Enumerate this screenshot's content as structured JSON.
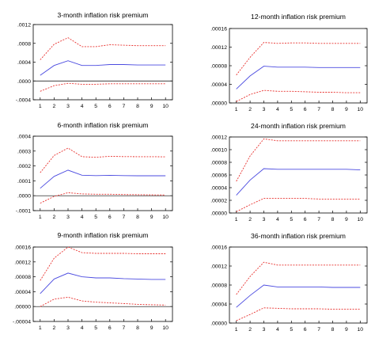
{
  "chart_data": [
    {
      "type": "line",
      "title": "3-month inflation risk premium",
      "x": [
        1,
        2,
        3,
        4,
        5,
        6,
        7,
        8,
        9,
        10
      ],
      "xticks": [
        "1",
        "2",
        "3",
        "4",
        "5",
        "6",
        "7",
        "8",
        "9",
        "10"
      ],
      "ylim": [
        -0.0004,
        0.0012
      ],
      "yticks": [
        -0.0004,
        0.0,
        0.0004,
        0.0008,
        0.0012
      ],
      "ytick_labels": [
        "-.0004",
        ".0000",
        ".0004",
        ".0008",
        ".0012"
      ],
      "zero_line": true,
      "series": [
        {
          "style": "dashed",
          "color": "#e8322f",
          "values": [
            0.00045,
            0.00078,
            0.00092,
            0.00073,
            0.00073,
            0.00077,
            0.00076,
            0.00075,
            0.00075,
            0.00075
          ]
        },
        {
          "style": "solid",
          "color": "#4b4be0",
          "values": [
            0.00012,
            0.00033,
            0.00043,
            0.00033,
            0.00033,
            0.00035,
            0.00035,
            0.00034,
            0.00034,
            0.00034
          ]
        },
        {
          "style": "dashed",
          "color": "#e8322f",
          "values": [
            -0.00022,
            -0.0001,
            -5e-05,
            -7e-05,
            -7e-05,
            -6e-05,
            -6e-05,
            -6e-05,
            -6e-05,
            -6e-05
          ]
        }
      ]
    },
    {
      "type": "line",
      "title": "12-month inflation risk premium",
      "x": [
        1,
        2,
        3,
        4,
        5,
        6,
        7,
        8,
        9,
        10
      ],
      "xticks": [
        "1",
        "2",
        "3",
        "4",
        "5",
        "6",
        "7",
        "8",
        "9",
        "10"
      ],
      "ylim": [
        0.0,
        0.00016
      ],
      "yticks": [
        0.0,
        4e-05,
        8e-05,
        0.00012,
        0.00016
      ],
      "ytick_labels": [
        ".00000",
        ".00004",
        ".00008",
        ".00012",
        ".00016"
      ],
      "zero_line": false,
      "series": [
        {
          "style": "dashed",
          "color": "#e8322f",
          "values": [
            6e-05,
            9.8e-05,
            0.00013,
            0.000128,
            0.000129,
            0.000129,
            0.000128,
            0.000128,
            0.000128,
            0.000128
          ]
        },
        {
          "style": "solid",
          "color": "#4b4be0",
          "values": [
            3e-05,
            5.8e-05,
            7.9e-05,
            7.7e-05,
            7.7e-05,
            7.7e-05,
            7.6e-05,
            7.6e-05,
            7.6e-05,
            7.6e-05
          ]
        },
        {
          "style": "dashed",
          "color": "#e8322f",
          "values": [
            3e-06,
            1.8e-05,
            2.7e-05,
            2.5e-05,
            2.5e-05,
            2.4e-05,
            2.3e-05,
            2.3e-05,
            2.2e-05,
            2.2e-05
          ]
        }
      ]
    },
    {
      "type": "line",
      "title": "6-month inflation risk premium",
      "x": [
        1,
        2,
        3,
        4,
        5,
        6,
        7,
        8,
        9,
        10
      ],
      "xticks": [
        "1",
        "2",
        "3",
        "4",
        "5",
        "6",
        "7",
        "8",
        "9",
        "10"
      ],
      "ylim": [
        -0.0001,
        0.0004
      ],
      "yticks": [
        -0.0001,
        0.0,
        0.0001,
        0.0002,
        0.0003,
        0.0004
      ],
      "ytick_labels": [
        "-.0001",
        ".0000",
        ".0001",
        ".0002",
        ".0003",
        ".0004"
      ],
      "zero_line": true,
      "series": [
        {
          "style": "dashed",
          "color": "#e8322f",
          "values": [
            0.000155,
            0.00027,
            0.00032,
            0.000262,
            0.000258,
            0.000265,
            0.000263,
            0.000262,
            0.000262,
            0.000261
          ]
        },
        {
          "style": "solid",
          "color": "#4b4be0",
          "values": [
            5e-05,
            0.00013,
            0.000172,
            0.000138,
            0.000135,
            0.000137,
            0.000135,
            0.000134,
            0.000134,
            0.000134
          ]
        },
        {
          "style": "dashed",
          "color": "#e8322f",
          "values": [
            -5e-05,
            -5e-06,
            2e-05,
            1.2e-05,
            1e-05,
            1e-05,
            8e-06,
            7e-06,
            6e-06,
            5e-06
          ]
        }
      ]
    },
    {
      "type": "line",
      "title": "24-month inflation risk premium",
      "x": [
        1,
        2,
        3,
        4,
        5,
        6,
        7,
        8,
        9,
        10
      ],
      "xticks": [
        "1",
        "2",
        "3",
        "4",
        "5",
        "6",
        "7",
        "8",
        "9",
        "10"
      ],
      "ylim": [
        0.0,
        0.00012
      ],
      "yticks": [
        0.0,
        2e-05,
        4e-05,
        6e-05,
        8e-05,
        0.0001,
        0.00012
      ],
      "ytick_labels": [
        ".00000",
        ".00002",
        ".00004",
        ".00006",
        ".00008",
        ".00010",
        ".00012"
      ],
      "zero_line": false,
      "series": [
        {
          "style": "dashed",
          "color": "#e8322f",
          "values": [
            5e-05,
            9e-05,
            0.000117,
            0.000114,
            0.000114,
            0.000114,
            0.000114,
            0.000114,
            0.000114,
            0.000114
          ]
        },
        {
          "style": "solid",
          "color": "#4b4be0",
          "values": [
            2.8e-05,
            5.2e-05,
            7e-05,
            6.9e-05,
            6.9e-05,
            6.9e-05,
            6.9e-05,
            6.9e-05,
            6.9e-05,
            6.8e-05
          ]
        },
        {
          "style": "dashed",
          "color": "#e8322f",
          "values": [
            2e-06,
            1.3e-05,
            2.3e-05,
            2.3e-05,
            2.3e-05,
            2.3e-05,
            2.2e-05,
            2.2e-05,
            2.2e-05,
            2.2e-05
          ]
        }
      ]
    },
    {
      "type": "line",
      "title": "9-month inflation risk premium",
      "x": [
        1,
        2,
        3,
        4,
        5,
        6,
        7,
        8,
        9,
        10
      ],
      "xticks": [
        "1",
        "2",
        "3",
        "4",
        "5",
        "6",
        "7",
        "8",
        "9",
        "10"
      ],
      "ylim": [
        -4e-05,
        0.00016
      ],
      "yticks": [
        -4e-05,
        0.0,
        4e-05,
        8e-05,
        0.00012,
        0.00016
      ],
      "ytick_labels": [
        "-.00004",
        ".00000",
        ".00004",
        ".00008",
        ".00012",
        ".00016"
      ],
      "zero_line": true,
      "series": [
        {
          "style": "dashed",
          "color": "#e8322f",
          "values": [
            7e-05,
            0.00013,
            0.00016,
            0.000145,
            0.000143,
            0.000143,
            0.000143,
            0.000142,
            0.000142,
            0.000142
          ]
        },
        {
          "style": "solid",
          "color": "#4b4be0",
          "values": [
            3.5e-05,
            7.4e-05,
            9e-05,
            8e-05,
            7.7e-05,
            7.7e-05,
            7.5e-05,
            7.4e-05,
            7.3e-05,
            7.3e-05
          ]
        },
        {
          "style": "dashed",
          "color": "#e8322f",
          "values": [
            0.0,
            2e-05,
            2.5e-05,
            1.5e-05,
            1.2e-05,
            1e-05,
            8e-06,
            6e-06,
            5e-06,
            4e-06
          ]
        }
      ]
    },
    {
      "type": "line",
      "title": "36-month inflation risk premium",
      "x": [
        1,
        2,
        3,
        4,
        5,
        6,
        7,
        8,
        9,
        10
      ],
      "xticks": [
        "1",
        "2",
        "3",
        "4",
        "5",
        "6",
        "7",
        "8",
        "9",
        "10"
      ],
      "ylim": [
        0.0,
        0.00016
      ],
      "yticks": [
        0.0,
        4e-05,
        8e-05,
        0.00012,
        0.00016
      ],
      "ytick_labels": [
        ".00000",
        ".00004",
        ".00008",
        ".00012",
        ".00016"
      ],
      "zero_line": false,
      "series": [
        {
          "style": "dashed",
          "color": "#e8322f",
          "values": [
            6e-05,
            9.8e-05,
            0.000128,
            0.000122,
            0.000122,
            0.000122,
            0.000122,
            0.000122,
            0.000122,
            0.000122
          ]
        },
        {
          "style": "solid",
          "color": "#4b4be0",
          "values": [
            3.3e-05,
            5.8e-05,
            8e-05,
            7.6e-05,
            7.6e-05,
            7.6e-05,
            7.6e-05,
            7.5e-05,
            7.5e-05,
            7.5e-05
          ]
        },
        {
          "style": "dashed",
          "color": "#e8322f",
          "values": [
            5e-06,
            1.8e-05,
            3.2e-05,
            3.1e-05,
            3e-05,
            3e-05,
            3e-05,
            2.9e-05,
            2.9e-05,
            2.9e-05
          ]
        }
      ]
    }
  ]
}
